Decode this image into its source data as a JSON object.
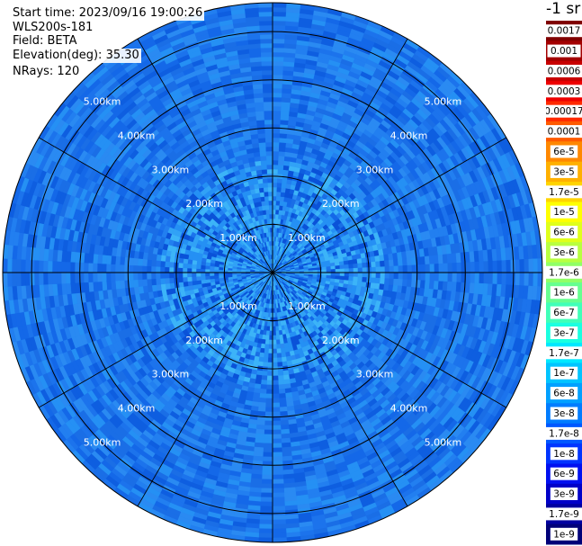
{
  "header": {
    "start_time": "Start time: 2023/09/16 19:00:26",
    "instrument": "WLS200s-181",
    "field": "Field: BETA",
    "elevation_label": "Elevation(deg):",
    "elevation_value": "35.30",
    "nrays": "NRays: 120"
  },
  "chart_data": {
    "type": "heatmap",
    "projection": "polar-ppi",
    "field": "BETA",
    "elevation_deg": 35.3,
    "n_rays": 120,
    "range_rings_km": [
      1,
      2,
      3,
      4,
      5
    ],
    "range_labels": [
      "1.00km",
      "2.00km",
      "3.00km",
      "4.00km",
      "5.00km"
    ],
    "max_range_km": 5.6,
    "spokes_deg": [
      0,
      30,
      60,
      90,
      120,
      150,
      180,
      210,
      240,
      270,
      300,
      330
    ],
    "colorbar": {
      "unit_label": "-1 sr",
      "ticks": [
        "0.0017",
        "0.001",
        "0.0006",
        "0.0003",
        "0.00017",
        "0.0001",
        "6e-5",
        "3e-5",
        "1.7e-5",
        "1e-5",
        "6e-6",
        "3e-6",
        "1.7e-6",
        "1e-6",
        "6e-7",
        "3e-7",
        "1.7e-7",
        "1e-7",
        "6e-8",
        "3e-8",
        "1.7e-8",
        "1e-8",
        "6e-9",
        "3e-9",
        "1.7e-9",
        "1e-9"
      ],
      "colors": [
        "#800000",
        "#a30000",
        "#c80000",
        "#ee0000",
        "#ff2a00",
        "#ff5a00",
        "#ff8800",
        "#ffb000",
        "#ffd400",
        "#ffff00",
        "#e0ff1a",
        "#b8ff40",
        "#90ff66",
        "#66ff90",
        "#40ffb8",
        "#1affe0",
        "#00e8ff",
        "#00c4ff",
        "#00a0ff",
        "#007cff",
        "#0058ff",
        "#0034ff",
        "#0010f0",
        "#0000c8",
        "#0000a0",
        "#000078"
      ]
    },
    "dominant_range": [
      "1e-8",
      "1.7e-7"
    ],
    "grid": true
  }
}
